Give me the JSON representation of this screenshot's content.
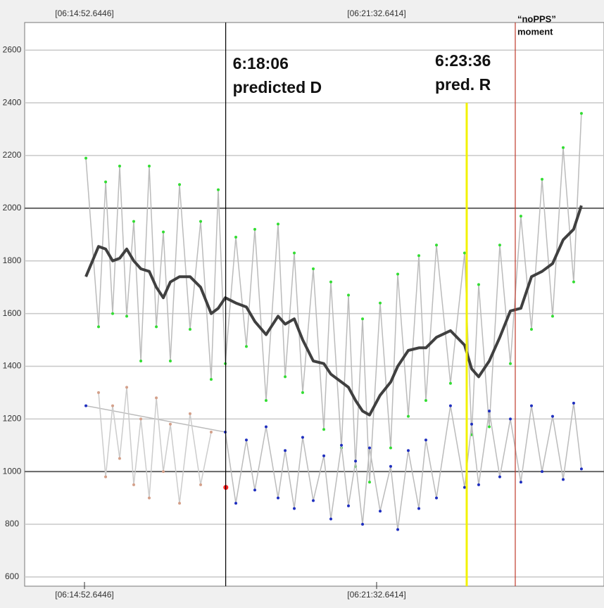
{
  "chart_data": {
    "type": "line",
    "xlim": [
      53610.7,
      54404.0
    ],
    "ylim": [
      565,
      2705
    ],
    "yticks": [
      600,
      800,
      1000,
      1200,
      1400,
      1600,
      1800,
      2000,
      2200,
      2400,
      2600
    ],
    "major_yticks": [
      1000,
      2000
    ],
    "xticks": [
      {
        "value": 53692.6446,
        "label": "[06:14:52.6446]"
      },
      {
        "value": 54092.6414,
        "label": "[06:21:32.6414]"
      }
    ],
    "grid": true,
    "series": [
      {
        "name": "raw",
        "color": "#33dd33",
        "line_color": "#bbbbbb",
        "x": [
          53694.6,
          53711.9,
          53721.6,
          53731.2,
          53740.8,
          53750.5,
          53760.1,
          53769.8,
          53781.3,
          53791.0,
          53800.6,
          53810.2,
          53822.8,
          53837.2,
          53851.7,
          53866.1,
          53875.8,
          53885.4,
          53899.9,
          53914.3,
          53925.9,
          53941.3,
          53957.7,
          53967.4,
          53979.9,
          53991.4,
          54005.9,
          54020.4,
          54030.0,
          54044.5,
          54054.1,
          54063.8,
          54073.4,
          54083.0,
          54097.5,
          54111.9,
          54121.6,
          54136.0,
          54150.5,
          54160.1,
          54174.6,
          54193.8,
          54213.1,
          54222.8,
          54232.4,
          54246.9,
          54261.3,
          54275.8,
          54290.2,
          54304.7,
          54319.2,
          54333.6,
          54348.1,
          54362.5,
          54373.1
        ],
        "values": [
          2190,
          1550,
          2100,
          1600,
          2160,
          1590,
          1950,
          1420,
          2160,
          1550,
          1910,
          1420,
          2090,
          1540,
          1950,
          1350,
          2070,
          1410,
          1890,
          1475,
          1920,
          1270,
          1940,
          1360,
          1830,
          1300,
          1770,
          1160,
          1720,
          1090,
          1670,
          1020,
          1580,
          960,
          1640,
          1090,
          1750,
          1210,
          1820,
          1270,
          1860,
          1335,
          1830,
          1140,
          1710,
          1170,
          1860,
          1410,
          1970,
          1540,
          2110,
          1590,
          2230,
          1720,
          2360
        ]
      },
      {
        "name": "blue",
        "color": "#1f2fbf",
        "line_color": "#bbbbbb",
        "x": [
          53694.6,
          53885.4,
          53899.9,
          53914.3,
          53925.9,
          53941.3,
          53957.7,
          53967.4,
          53979.9,
          53991.4,
          54005.9,
          54020.4,
          54030.0,
          54044.5,
          54054.1,
          54063.8,
          54073.4,
          54083.0,
          54097.5,
          54111.9,
          54121.6,
          54136.0,
          54150.5,
          54160.1,
          54174.6,
          54193.8,
          54213.1,
          54222.8,
          54232.4,
          54246.9,
          54261.3,
          54275.8,
          54290.2,
          54304.7,
          54319.2,
          54333.6,
          54348.1,
          54362.5,
          54373.1
        ],
        "values": [
          1250,
          1150,
          880,
          1120,
          930,
          1170,
          900,
          1080,
          860,
          1130,
          890,
          1060,
          820,
          1100,
          870,
          1040,
          800,
          1090,
          850,
          1020,
          780,
          1080,
          860,
          1120,
          900,
          1250,
          940,
          1180,
          950,
          1230,
          980,
          1200,
          960,
          1250,
          1000,
          1210,
          970,
          1260,
          1010
        ]
      },
      {
        "name": "tan",
        "color": "#d4a08a",
        "line_color": "#cccccc",
        "x": [
          53711.9,
          53721.6,
          53731.2,
          53740.8,
          53750.5,
          53760.1,
          53769.8,
          53781.3,
          53791.0,
          53800.6,
          53810.2,
          53822.8,
          53837.2,
          53851.7,
          53866.1
        ],
        "values": [
          1300,
          980,
          1250,
          1050,
          1320,
          950,
          1200,
          900,
          1280,
          1000,
          1180,
          880,
          1220,
          950,
          1150
        ]
      },
      {
        "name": "marker",
        "color": "#ff2020",
        "x": [
          53886.2
        ],
        "values": [
          940
        ]
      },
      {
        "name": "smoothed",
        "color": "#404040",
        "smooth": true,
        "x": [
          53694.6,
          53711.9,
          53721.6,
          53731.2,
          53740.8,
          53750.5,
          53760.1,
          53769.8,
          53781.3,
          53791.0,
          53800.6,
          53810.2,
          53822.8,
          53837.2,
          53851.7,
          53866.1,
          53875.8,
          53885.4,
          53899.9,
          53914.3,
          53925.9,
          53941.3,
          53957.7,
          53967.4,
          53979.9,
          53991.4,
          54005.9,
          54020.4,
          54030.0,
          54044.5,
          54054.1,
          54063.8,
          54073.4,
          54083.0,
          54097.5,
          54111.9,
          54121.6,
          54136.0,
          54150.5,
          54160.1,
          54174.6,
          54193.8,
          54213.1,
          54222.8,
          54232.4,
          54246.9,
          54261.3,
          54275.8,
          54290.2,
          54304.7,
          54319.2,
          54333.6,
          54348.1,
          54362.5,
          54373.1
        ],
        "values": [
          1740,
          1855,
          1845,
          1800,
          1810,
          1845,
          1800,
          1770,
          1760,
          1700,
          1660,
          1720,
          1740,
          1740,
          1700,
          1600,
          1620,
          1660,
          1640,
          1625,
          1570,
          1520,
          1590,
          1560,
          1580,
          1500,
          1420,
          1410,
          1370,
          1340,
          1320,
          1270,
          1230,
          1215,
          1290,
          1340,
          1400,
          1460,
          1470,
          1470,
          1510,
          1535,
          1480,
          1390,
          1360,
          1420,
          1510,
          1610,
          1620,
          1740,
          1760,
          1790,
          1880,
          1920,
          2010
        ]
      }
    ],
    "vlines": [
      {
        "x": 53886.0,
        "color": "#000000",
        "labels": [
          "6:18:06",
          "predicted D"
        ]
      },
      {
        "x": 54216.0,
        "color": "#f2f200",
        "ymax": 2400,
        "labels": [
          "6:23:36",
          "pred. R"
        ]
      },
      {
        "x": 54282.5,
        "color": "#c0392b",
        "labels": [
          "“noPPS”",
          "moment"
        ]
      }
    ]
  }
}
